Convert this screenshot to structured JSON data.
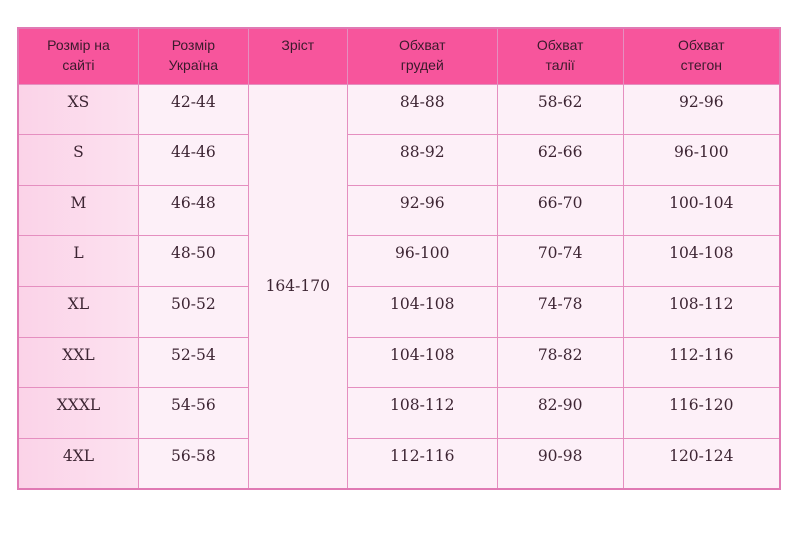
{
  "table": {
    "headers": [
      "Розмір на сайті",
      "Розмір Україна",
      "Зріст",
      "Обхват грудей",
      "Обхват талії",
      "Обхват стегон"
    ],
    "height_value": "164-170",
    "rows": [
      {
        "site": "XS",
        "ua": "42-44",
        "chest": "84-88",
        "waist": "58-62",
        "hips": "92-96"
      },
      {
        "site": "S",
        "ua": "44-46",
        "chest": "88-92",
        "waist": "62-66",
        "hips": "96-100"
      },
      {
        "site": "M",
        "ua": "46-48",
        "chest": "92-96",
        "waist": "66-70",
        "hips": "100-104"
      },
      {
        "site": "L",
        "ua": "48-50",
        "chest": "96-100",
        "waist": "70-74",
        "hips": "104-108"
      },
      {
        "site": "XL",
        "ua": "50-52",
        "chest": "104-108",
        "waist": "74-78",
        "hips": "108-112"
      },
      {
        "site": "XXL",
        "ua": "52-54",
        "chest": "104-108",
        "waist": "78-82",
        "hips": "112-116"
      },
      {
        "site": "XXXL",
        "ua": "54-56",
        "chest": "108-112",
        "waist": "82-90",
        "hips": "116-120"
      },
      {
        "site": "4XL",
        "ua": "56-58",
        "chest": "112-116",
        "waist": "90-98",
        "hips": "120-124"
      }
    ]
  },
  "colors": {
    "header": "#f7559c",
    "first_column": "#fbd3e8",
    "cells": "#fdf0f8",
    "border": "#e58fc0"
  }
}
